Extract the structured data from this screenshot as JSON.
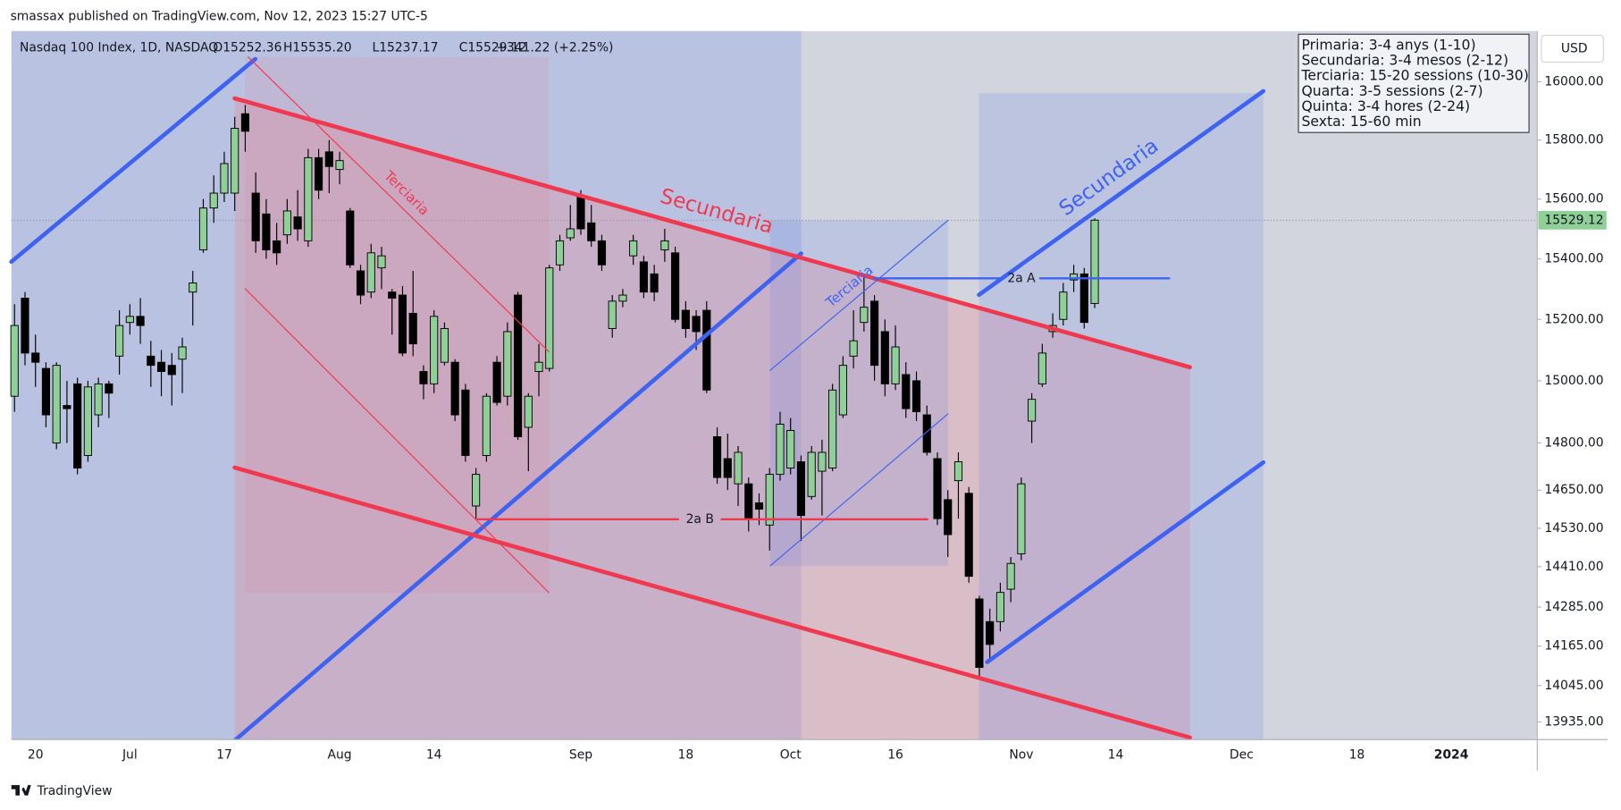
{
  "header": {
    "published": "smassax published on TradingView.com, Nov 12, 2023 15:27 UTC-5",
    "brand": "TradingView",
    "currency": "USD"
  },
  "chart_data": {
    "type": "candlestick",
    "title": "Nasdaq 100 Index, 1D, NASDAQ",
    "legend_values": [
      "O15252.36",
      "H15535.20",
      "L15237.17",
      "C15529.12",
      "+341.22 (+2.25%)"
    ],
    "log_scale": true,
    "grid": false,
    "up_color": "#8fcf98",
    "down_color": "#000000",
    "xlim": [
      -0.3,
      145.2
    ],
    "ylim": [
      13882,
      16176
    ],
    "xticks": [
      {
        "value": 2,
        "label": "20"
      },
      {
        "value": 11,
        "label": "Jul"
      },
      {
        "value": 20,
        "label": "17"
      },
      {
        "value": 31,
        "label": "Aug"
      },
      {
        "value": 40,
        "label": "14"
      },
      {
        "value": 54,
        "label": "Sep"
      },
      {
        "value": 64,
        "label": "18"
      },
      {
        "value": 74,
        "label": "Oct"
      },
      {
        "value": 84,
        "label": "16"
      },
      {
        "value": 96,
        "label": "Nov"
      },
      {
        "value": 105,
        "label": "14"
      },
      {
        "value": 117,
        "label": "Dec"
      },
      {
        "value": 128,
        "label": "18"
      },
      {
        "value": 137,
        "label": "2024"
      }
    ],
    "yticks": [
      {
        "value": 16000,
        "label": "16000.00"
      },
      {
        "value": 15800,
        "label": "15800.00"
      },
      {
        "value": 15600,
        "label": "15600.00"
      },
      {
        "value": 15400,
        "label": "15400.00"
      },
      {
        "value": 15200,
        "label": "15200.00"
      },
      {
        "value": 15000,
        "label": "15000.00"
      },
      {
        "value": 14800,
        "label": "14800.00"
      },
      {
        "value": 14650,
        "label": "14650.00"
      },
      {
        "value": 14530,
        "label": "14530.00"
      },
      {
        "value": 14410,
        "label": "14410.00"
      },
      {
        "value": 14285,
        "label": "14285.00"
      },
      {
        "value": 14165,
        "label": "14165.00"
      },
      {
        "value": 14045,
        "label": "14045.00"
      },
      {
        "value": 13935,
        "label": "13935.00"
      }
    ],
    "ohlc": [
      [
        14950,
        15250,
        14900,
        15180
      ],
      [
        15270,
        15290,
        15050,
        15090
      ],
      [
        15090,
        15150,
        14980,
        15060
      ],
      [
        15040,
        15060,
        14850,
        14890
      ],
      [
        14800,
        15060,
        14780,
        15050
      ],
      [
        14920,
        15000,
        14800,
        14910
      ],
      [
        14990,
        15010,
        14700,
        14720
      ],
      [
        14760,
        15000,
        14740,
        14980
      ],
      [
        14890,
        15010,
        14850,
        14990
      ],
      [
        14990,
        15000,
        14880,
        14960
      ],
      [
        15080,
        15230,
        15020,
        15180
      ],
      [
        15190,
        15250,
        15150,
        15210
      ],
      [
        15210,
        15270,
        15120,
        15180
      ],
      [
        15080,
        15130,
        14980,
        15050
      ],
      [
        15060,
        15100,
        14950,
        15030
      ],
      [
        15050,
        15090,
        14920,
        15020
      ],
      [
        15070,
        15140,
        14960,
        15110
      ],
      [
        15290,
        15360,
        15180,
        15320
      ],
      [
        15430,
        15600,
        15420,
        15570
      ],
      [
        15570,
        15680,
        15520,
        15620
      ],
      [
        15620,
        15760,
        15590,
        15720
      ],
      [
        15620,
        15880,
        15560,
        15840
      ],
      [
        15890,
        15920,
        15760,
        15830
      ],
      [
        15620,
        15690,
        15420,
        15460
      ],
      [
        15550,
        15600,
        15400,
        15430
      ],
      [
        15460,
        15520,
        15380,
        15420
      ],
      [
        15480,
        15600,
        15450,
        15560
      ],
      [
        15540,
        15630,
        15460,
        15500
      ],
      [
        15460,
        15770,
        15440,
        15740
      ],
      [
        15740,
        15770,
        15600,
        15630
      ],
      [
        15760,
        15800,
        15620,
        15710
      ],
      [
        15700,
        15760,
        15650,
        15730
      ],
      [
        15560,
        15570,
        15370,
        15380
      ],
      [
        15360,
        15380,
        15250,
        15280
      ],
      [
        15290,
        15450,
        15270,
        15420
      ],
      [
        15370,
        15440,
        15300,
        15410
      ],
      [
        15290,
        15300,
        15150,
        15270
      ],
      [
        15280,
        15310,
        15080,
        15090
      ],
      [
        15220,
        15360,
        15080,
        15120
      ],
      [
        15030,
        15050,
        14940,
        14990
      ],
      [
        14990,
        15230,
        14960,
        15210
      ],
      [
        15060,
        15190,
        15050,
        15170
      ],
      [
        15060,
        15070,
        14870,
        14890
      ],
      [
        14970,
        14990,
        14740,
        14760
      ],
      [
        14600,
        14720,
        14560,
        14700
      ],
      [
        14760,
        14960,
        14740,
        14950
      ],
      [
        15060,
        15080,
        14920,
        14930
      ],
      [
        14950,
        15190,
        14920,
        15160
      ],
      [
        15280,
        15290,
        14810,
        14820
      ],
      [
        14850,
        14960,
        14710,
        14950
      ],
      [
        15030,
        15120,
        14950,
        15060
      ],
      [
        15040,
        15380,
        15030,
        15370
      ],
      [
        15380,
        15480,
        15360,
        15460
      ],
      [
        15470,
        15580,
        15460,
        15500
      ],
      [
        15610,
        15630,
        15480,
        15500
      ],
      [
        15520,
        15580,
        15440,
        15460
      ],
      [
        15460,
        15480,
        15360,
        15380
      ],
      [
        15170,
        15280,
        15140,
        15260
      ],
      [
        15260,
        15300,
        15240,
        15280
      ],
      [
        15410,
        15480,
        15380,
        15460
      ],
      [
        15390,
        15410,
        15270,
        15290
      ],
      [
        15350,
        15380,
        15260,
        15290
      ],
      [
        15430,
        15500,
        15390,
        15460
      ],
      [
        15420,
        15440,
        15190,
        15200
      ],
      [
        15230,
        15260,
        15140,
        15170
      ],
      [
        15210,
        15230,
        15100,
        15160
      ],
      [
        15230,
        15260,
        14960,
        14970
      ],
      [
        14820,
        14850,
        14670,
        14690
      ],
      [
        14750,
        14830,
        14650,
        14690
      ],
      [
        14670,
        14790,
        14600,
        14770
      ],
      [
        14670,
        14690,
        14520,
        14560
      ],
      [
        14610,
        14640,
        14540,
        14590
      ],
      [
        14540,
        14720,
        14460,
        14700
      ],
      [
        14700,
        14900,
        14680,
        14860
      ],
      [
        14720,
        14880,
        14700,
        14840
      ],
      [
        14740,
        14760,
        14490,
        14570
      ],
      [
        14630,
        14790,
        14620,
        14770
      ],
      [
        14710,
        14810,
        14570,
        14770
      ],
      [
        14720,
        14990,
        14710,
        14970
      ],
      [
        14890,
        15080,
        14880,
        15050
      ],
      [
        15080,
        15230,
        15040,
        15130
      ],
      [
        15190,
        15340,
        15160,
        15240
      ],
      [
        15260,
        15280,
        15000,
        15050
      ],
      [
        15160,
        15200,
        14950,
        14990
      ],
      [
        14990,
        15180,
        14970,
        15110
      ],
      [
        15020,
        15060,
        14880,
        14910
      ],
      [
        15000,
        15030,
        14870,
        14900
      ],
      [
        14890,
        14920,
        14760,
        14770
      ],
      [
        14750,
        14770,
        14540,
        14560
      ],
      [
        14620,
        14650,
        14440,
        14510
      ],
      [
        14680,
        14770,
        14560,
        14740
      ],
      [
        14640,
        14660,
        14360,
        14380
      ],
      [
        14310,
        14320,
        14070,
        14100
      ],
      [
        14240,
        14280,
        14120,
        14170
      ],
      [
        14240,
        14360,
        14210,
        14330
      ],
      [
        14340,
        14440,
        14300,
        14420
      ],
      [
        14450,
        14690,
        14430,
        14670
      ],
      [
        14870,
        14960,
        14800,
        14940
      ],
      [
        14990,
        15120,
        14980,
        15090
      ],
      [
        15160,
        15220,
        15140,
        15180
      ],
      [
        15200,
        15320,
        15180,
        15290
      ],
      [
        15330,
        15380,
        15290,
        15350
      ],
      [
        15350,
        15370,
        15170,
        15190
      ],
      [
        15252.36,
        15535.2,
        15237.17,
        15529.12
      ]
    ],
    "annotations": [
      "Secundaria",
      "Terciaria",
      "Terciaria",
      "Secundaria",
      "2a A",
      "2a B"
    ],
    "notes": [
      "Primaria: 3-4 anys (1-10)",
      "Secundaria: 3-4 mesos (2-12)",
      "Terciaria: 15-20 sessions (10-30)",
      "Quarta: 3-5 sessions (2-7)",
      "Quinta: 3-4 hores (2-24)",
      "Sexta: 15-60 min"
    ]
  }
}
